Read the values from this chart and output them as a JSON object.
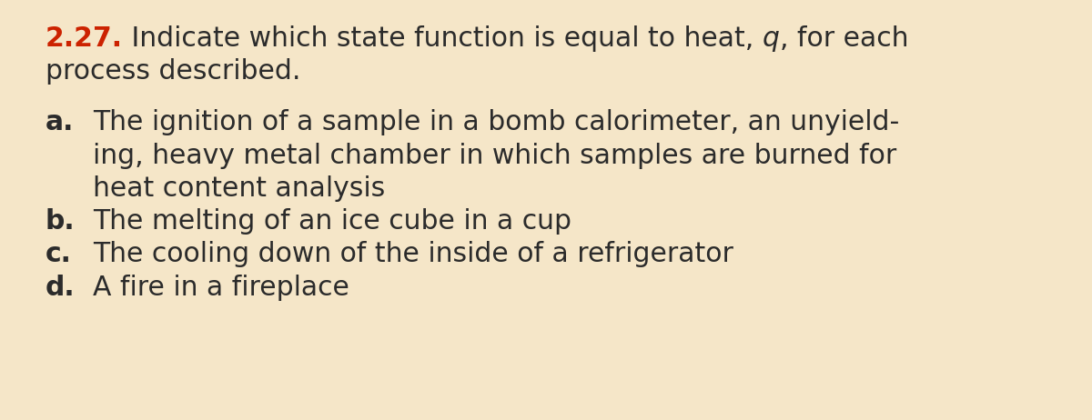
{
  "background_color": "#f5e6c8",
  "title_number": "2.27.",
  "title_number_color": "#cc2200",
  "title_color": "#2b2b2b",
  "title_fontsize": 21.5,
  "items": [
    {
      "label": "a.",
      "lines": [
        "The ignition of a sample in a bomb calorimeter, an unyield-",
        "ing, heavy metal chamber in which samples are burned for",
        "heat content analysis"
      ]
    },
    {
      "label": "b.",
      "lines": [
        "The melting of an ice cube in a cup"
      ]
    },
    {
      "label": "c.",
      "lines": [
        "The cooling down of the inside of a refrigerator"
      ]
    },
    {
      "label": "d.",
      "lines": [
        "A fire in a fireplace"
      ]
    }
  ],
  "label_color": "#2b2b2b",
  "label_fontsize": 21.5,
  "text_color": "#2b2b2b",
  "text_fontsize": 21.5,
  "label_fontweight": "bold",
  "font_family": "DejaVu Sans"
}
